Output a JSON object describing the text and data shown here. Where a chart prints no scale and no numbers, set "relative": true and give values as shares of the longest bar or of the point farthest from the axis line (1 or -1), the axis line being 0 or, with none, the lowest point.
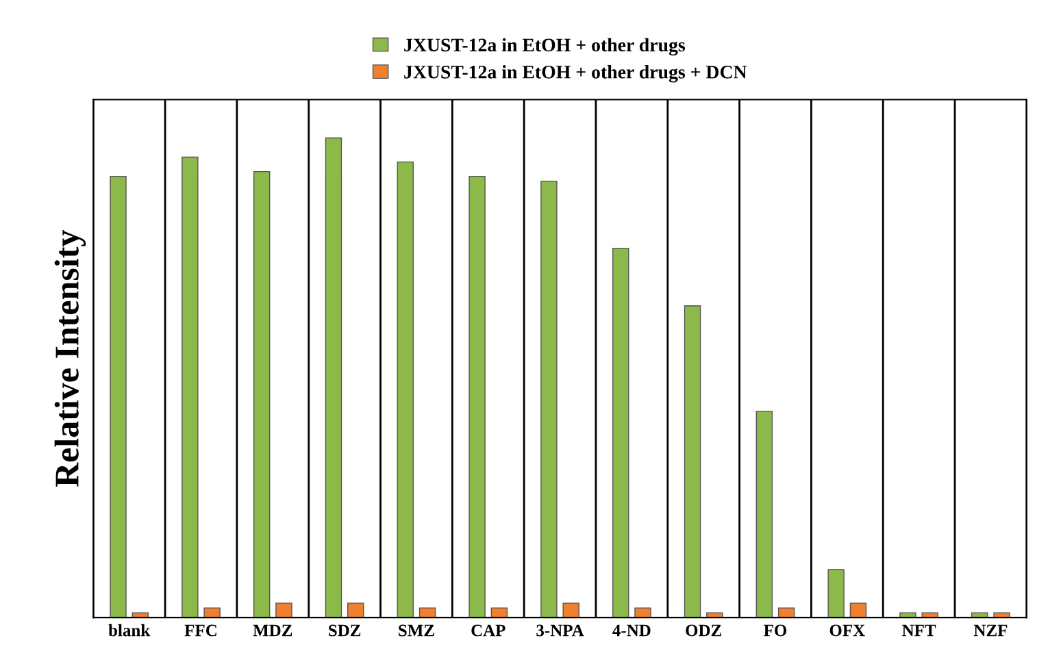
{
  "chart_data": {
    "type": "bar",
    "relative": true,
    "ylabel": "Relative Intensity",
    "categories": [
      "blank",
      "FFC",
      "MDZ",
      "SDZ",
      "SMZ",
      "CAP",
      "3-NPA",
      "4-ND",
      "ODZ",
      "FO",
      "OFX",
      "NFT",
      "NZF"
    ],
    "series": [
      {
        "name": "JXUST-12a in EtOH + other drugs",
        "color": "#8db84a",
        "values": [
          0.92,
          0.96,
          0.93,
          1,
          0.95,
          0.92,
          0.91,
          0.77,
          0.65,
          0.43,
          0.1,
          0.01,
          0.01
        ]
      },
      {
        "name": "JXUST-12a in EtOH + other drugs + DCN",
        "color": "#f08030",
        "values": [
          0.01,
          0.02,
          0.03,
          0.03,
          0.02,
          0.02,
          0.03,
          0.02,
          0.01,
          0.02,
          0.03,
          0.01,
          0.01
        ]
      }
    ],
    "grid": "x",
    "legend": "top"
  }
}
